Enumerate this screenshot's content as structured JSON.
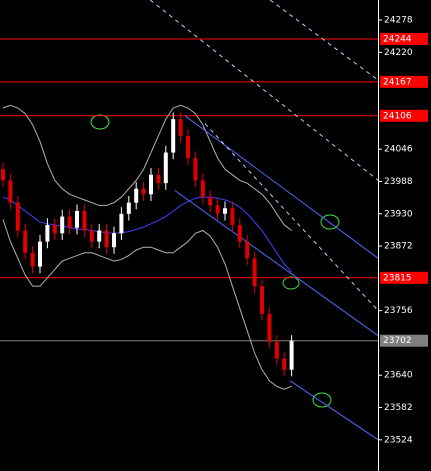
{
  "chart_data": {
    "type": "candlestick",
    "open": [
      24010,
      23990,
      23950,
      23900,
      23860,
      23835,
      23880,
      23910,
      23895,
      23925,
      23905,
      23935,
      23900,
      23880,
      23900,
      23870,
      23895,
      23930,
      23950,
      23975,
      23965,
      24000,
      23985,
      24040,
      24100,
      24070,
      24030,
      23990,
      23960,
      23945,
      23930,
      23940,
      23910,
      23880,
      23850,
      23800,
      23750,
      23700,
      23670,
      23650
    ],
    "high": [
      24022,
      24002,
      23962,
      23912,
      23872,
      23892,
      23922,
      23922,
      23937,
      23937,
      23947,
      23947,
      23912,
      23912,
      23912,
      23907,
      23942,
      23962,
      23987,
      23987,
      24012,
      24012,
      24052,
      24112,
      24112,
      24082,
      24042,
      24002,
      23972,
      23957,
      23952,
      23952,
      23922,
      23892,
      23862,
      23812,
      23762,
      23712,
      23682,
      23712
    ],
    "low": [
      23978,
      23938,
      23888,
      23848,
      23823,
      23823,
      23868,
      23883,
      23883,
      23893,
      23893,
      23888,
      23868,
      23868,
      23858,
      23858,
      23883,
      23918,
      23938,
      23953,
      23953,
      23973,
      23973,
      24028,
      24058,
      24018,
      23978,
      23948,
      23933,
      23918,
      23918,
      23898,
      23868,
      23838,
      23788,
      23738,
      23688,
      23658,
      23638,
      23638
    ],
    "close": [
      23990,
      23950,
      23900,
      23860,
      23835,
      23880,
      23910,
      23895,
      23925,
      23905,
      23935,
      23900,
      23880,
      23900,
      23870,
      23895,
      23930,
      23950,
      23975,
      23965,
      24000,
      23985,
      24040,
      24100,
      24070,
      24030,
      23990,
      23960,
      23945,
      23930,
      23940,
      23910,
      23880,
      23850,
      23800,
      23750,
      23700,
      23670,
      23650,
      23702
    ],
    "up_color": "#ffffff",
    "down_color": "#e00000",
    "indicators": [
      {
        "color": "#4040ff",
        "values": [
          23960,
          23955,
          23945,
          23935,
          23925,
          23915,
          23912,
          23910,
          23908,
          23905,
          23903,
          23902,
          23900,
          23898,
          23896,
          23895,
          23896,
          23898,
          23902,
          23906,
          23912,
          23918,
          23925,
          23935,
          23945,
          23952,
          23958,
          23960,
          23960,
          23958,
          23955,
          23950,
          23942,
          23930,
          23915,
          23900,
          23880,
          23860,
          23840,
          23825
        ]
      },
      {
        "color": "#b0b0b0",
        "values": [
          24120,
          24125,
          24120,
          24110,
          24090,
          24060,
          24020,
          23990,
          23975,
          23965,
          23960,
          23955,
          23950,
          23945,
          23945,
          23950,
          23960,
          23975,
          23990,
          24010,
          24040,
          24070,
          24100,
          24120,
          24125,
          24120,
          24110,
          24090,
          24060,
          24030,
          24010,
          24000,
          23990,
          23985,
          23975,
          23965,
          23950,
          23930,
          23910,
          23900
        ]
      },
      {
        "color": "#b0b0b0",
        "values": [
          23920,
          23880,
          23850,
          23820,
          23800,
          23800,
          23815,
          23830,
          23845,
          23850,
          23855,
          23860,
          23860,
          23855,
          23850,
          23845,
          23848,
          23855,
          23865,
          23870,
          23870,
          23865,
          23860,
          23860,
          23870,
          23880,
          23895,
          23900,
          23890,
          23870,
          23840,
          23800,
          23760,
          23720,
          23680,
          23650,
          23630,
          23620,
          23615,
          23620
        ]
      }
    ],
    "trendlines": [
      {
        "x": [
          24.6,
          50.7
        ],
        "y": [
          24106,
          23850
        ],
        "color": "#4a6cff",
        "dashed": false
      },
      {
        "x": [
          23.2,
          50.7
        ],
        "y": [
          23972,
          23711
        ],
        "color": "#4a6cff",
        "dashed": false
      },
      {
        "x": [
          38.8,
          50.7
        ],
        "y": [
          23630,
          23524
        ],
        "color": "#4a6cff",
        "dashed": false
      },
      {
        "x": [
          19.9,
          50.7
        ],
        "y": [
          24314,
          23990
        ],
        "color": "#c8c8ff",
        "dashed": true
      },
      {
        "x": [
          36.1,
          50.7
        ],
        "y": [
          24314,
          24170
        ],
        "color": "#c8c8ff",
        "dashed": true
      },
      {
        "x": [
          27.3,
          50.7
        ],
        "y": [
          24092,
          23756
        ],
        "color": "#c8c8ff",
        "dashed": true
      }
    ],
    "levels": [
      {
        "value": 24244,
        "label": "24244",
        "color": "#ff0000"
      },
      {
        "value": 24167,
        "label": "24167",
        "color": "#ff0000"
      },
      {
        "value": 24106,
        "label": "24106",
        "color": "#ff0000"
      },
      {
        "value": 23815,
        "label": "23815",
        "color": "#ff0000"
      },
      {
        "value": 23702,
        "label": "23702",
        "color": "#808080"
      }
    ],
    "ylim": [
      23468,
      24314
    ],
    "yticks": [
      24278,
      24220,
      24046,
      23988,
      23930,
      23872,
      23756,
      23640,
      23582,
      23524
    ]
  }
}
